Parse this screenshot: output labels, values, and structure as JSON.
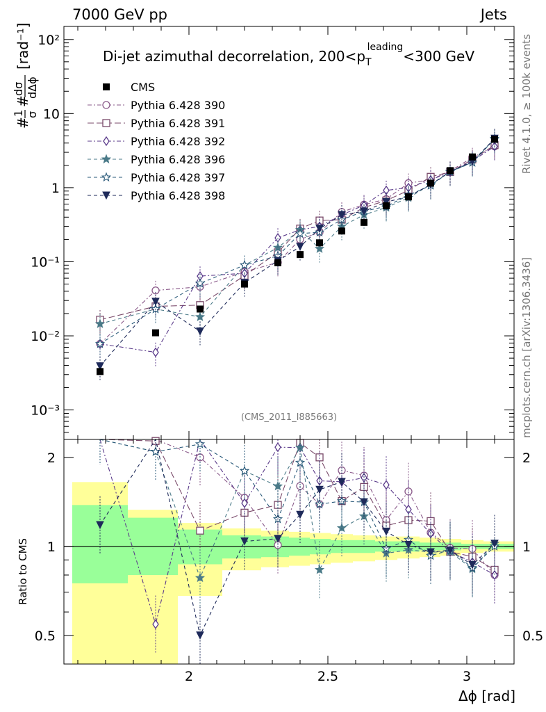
{
  "header": {
    "left": "7000 GeV pp",
    "right": "Jets"
  },
  "side_text": {
    "top": "Rivet 4.1.0, ≥ 100k events",
    "bottom": "mcplots.cern.ch [arXiv:1306.3436]"
  },
  "chart_data": {
    "type": "scatter",
    "title": {
      "main": "Di-jet azimuthal decorrelation, 200<p",
      "sub": "T",
      "sup": "leading",
      "tail": "<300 GeV"
    },
    "analysis_label": "(CMS_2011_I885663)",
    "xlabel": "Δϕ [rad]",
    "ylabel_main": "[rad⁻¹]",
    "ylabel_ratio": "Ratio to CMS",
    "xlim": [
      1.55,
      3.17
    ],
    "ylim_main": [
      0.0004,
      150
    ],
    "ylim_ratio": [
      0.4,
      2.3
    ],
    "x_ticks": [
      "2",
      "2.5",
      "3"
    ],
    "y_ticks_main": [
      "10⁻³",
      "10⁻²",
      "10⁻¹",
      "1",
      "10",
      "10²"
    ],
    "y_ticks_ratio": [
      "0.5",
      "1",
      "2"
    ],
    "x": [
      1.68,
      1.88,
      2.04,
      2.2,
      2.32,
      2.4,
      2.47,
      2.55,
      2.63,
      2.71,
      2.79,
      2.87,
      2.94,
      3.02,
      3.1
    ],
    "data": {
      "name": "CMS",
      "values": [
        0.0033,
        0.011,
        0.023,
        0.05,
        0.097,
        0.125,
        0.18,
        0.26,
        0.34,
        0.57,
        0.75,
        1.15,
        1.7,
        2.6,
        4.5
      ],
      "band_inner": [
        [
          0.75,
          1.38
        ],
        [
          0.8,
          1.25
        ],
        [
          0.87,
          1.14
        ],
        [
          0.91,
          1.09
        ],
        [
          0.92,
          1.08
        ],
        [
          0.93,
          1.07
        ],
        [
          0.94,
          1.06
        ],
        [
          0.95,
          1.05
        ],
        [
          0.95,
          1.05
        ],
        [
          0.96,
          1.04
        ],
        [
          0.96,
          1.04
        ],
        [
          0.97,
          1.03
        ],
        [
          0.97,
          1.03
        ],
        [
          0.98,
          1.02
        ],
        [
          0.98,
          1.02
        ]
      ],
      "band_outer": [
        [
          0.3,
          1.65
        ],
        [
          0.3,
          1.33
        ],
        [
          0.68,
          1.2
        ],
        [
          0.83,
          1.15
        ],
        [
          0.85,
          1.13
        ],
        [
          0.86,
          1.12
        ],
        [
          0.87,
          1.11
        ],
        [
          0.88,
          1.1
        ],
        [
          0.89,
          1.09
        ],
        [
          0.9,
          1.08
        ],
        [
          0.91,
          1.08
        ],
        [
          0.92,
          1.07
        ],
        [
          0.93,
          1.06
        ],
        [
          0.95,
          1.05
        ],
        [
          0.96,
          1.04
        ]
      ]
    },
    "series": [
      {
        "name": "Pythia 6.428 390",
        "color": "#8a5a8a",
        "marker": "circle",
        "dash": "6,3,2,3",
        "values": [
          0.0078,
          0.041,
          0.046,
          0.073,
          0.098,
          0.2,
          0.25,
          0.47,
          0.59,
          0.7,
          1.15,
          1.28,
          1.68,
          2.55,
          3.6
        ]
      },
      {
        "name": "Pythia 6.428 391",
        "color": "#7a4a6a",
        "marker": "square",
        "dash": "9,4",
        "values": [
          0.0165,
          0.025,
          0.026,
          0.065,
          0.134,
          0.28,
          0.36,
          0.37,
          0.54,
          0.67,
          0.92,
          1.4,
          1.63,
          2.4,
          3.75
        ]
      },
      {
        "name": "Pythia 6.428 392",
        "color": "#5a3a8a",
        "marker": "diamond",
        "dash": "6,3,2,3",
        "values": [
          0.0078,
          0.006,
          0.064,
          0.07,
          0.21,
          0.27,
          0.3,
          0.43,
          0.58,
          0.92,
          1.0,
          1.27,
          1.63,
          2.3,
          3.6
        ]
      },
      {
        "name": "Pythia 6.428 396",
        "color": "#4a7a88",
        "marker": "star-filled",
        "dash": "5,4",
        "values": [
          0.0145,
          0.023,
          0.018,
          0.09,
          0.155,
          0.27,
          0.15,
          0.3,
          0.43,
          0.54,
          0.73,
          1.1,
          1.63,
          2.18,
          4.6
        ]
      },
      {
        "name": "Pythia 6.428 397",
        "color": "#2a5a7a",
        "marker": "star-open",
        "dash": "5,4",
        "values": [
          0.0078,
          0.023,
          0.051,
          0.09,
          0.12,
          0.24,
          0.25,
          0.37,
          0.48,
          0.56,
          0.79,
          1.07,
          1.65,
          2.2,
          4.5
        ]
      },
      {
        "name": "Pythia 6.428 398",
        "color": "#1e2a5a",
        "marker": "triangle-down",
        "dash": "5,4",
        "values": [
          0.0039,
          0.029,
          0.0115,
          0.052,
          0.103,
          0.16,
          0.28,
          0.43,
          0.48,
          0.64,
          0.76,
          1.1,
          1.65,
          2.25,
          4.6
        ]
      }
    ]
  }
}
